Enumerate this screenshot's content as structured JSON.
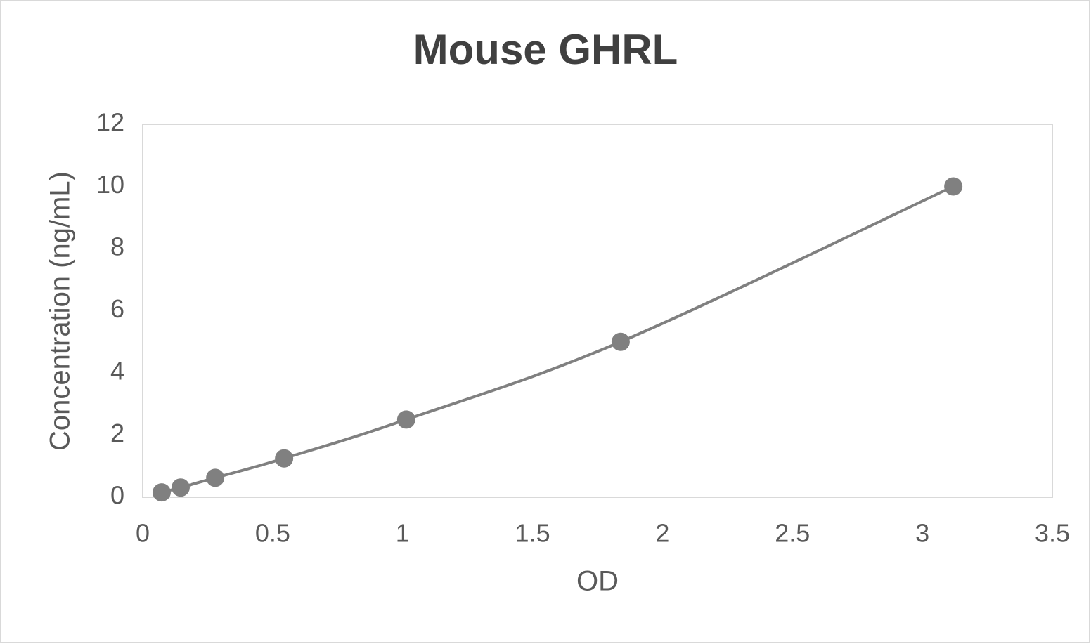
{
  "chart_data": {
    "type": "scatter",
    "title": "Mouse GHRL",
    "x_label": "OD",
    "y_label": "Concentration (ng/mL)",
    "x": [
      0.073,
      0.146,
      0.279,
      0.544,
      1.014,
      1.839,
      3.119
    ],
    "values": [
      0.156,
      0.312,
      0.625,
      1.25,
      2.5,
      5,
      10
    ],
    "color": "#808080",
    "line_color": "#808080",
    "smooth_line": true,
    "xlim": [
      0,
      3.5
    ],
    "xticks": [
      0,
      0.5,
      1,
      1.5,
      2,
      2.5,
      3,
      3.5
    ],
    "ylim": [
      0,
      12
    ],
    "yticks": [
      0,
      2,
      4,
      6,
      8,
      10,
      12
    ],
    "grid": false
  }
}
